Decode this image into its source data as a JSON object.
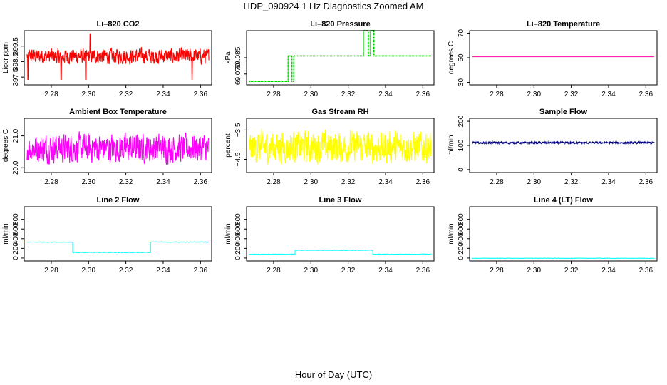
{
  "figure": {
    "title": "HDP_090924  1 Hz Diagnostics Zoomed AM",
    "xlabel": "Hour of Day (UTC)"
  },
  "chart_data": [
    {
      "type": "line",
      "title": "Li–820 CO2",
      "ylabel": "Licor ppm",
      "color": "#ff0000",
      "xlim": [
        2.2655,
        2.366
      ],
      "ylim": [
        397.0,
        400.5
      ],
      "xticks": [
        "2.28",
        "2.30",
        "2.32",
        "2.34",
        "2.36"
      ],
      "yticks": [
        "397.5",
        "398.5",
        "399.5"
      ],
      "series": [
        {
          "name": "CO2",
          "kind": "noise",
          "base": 398.85,
          "amp": 0.5,
          "spikes_down": [
            2.2675,
            2.2853,
            2.2985,
            2.3555
          ],
          "spike_min": 397.35,
          "spikes_up": [
            2.3008
          ],
          "spike_max": 400.3
        }
      ]
    },
    {
      "type": "line",
      "title": "Li–820 Pressure",
      "ylabel": "kPa",
      "color": "#00cc00",
      "xlim": [
        2.2655,
        2.366
      ],
      "ylim": [
        69.06,
        69.11
      ],
      "xticks": [
        "2.28",
        "2.30",
        "2.32",
        "2.34",
        "2.36"
      ],
      "yticks": [
        "69.070",
        "69.085"
      ],
      "series": [
        {
          "name": "Pressure",
          "kind": "steps",
          "points": [
            [
              2.2655,
              69.0632
            ],
            [
              2.2878,
              69.0632
            ],
            [
              2.2878,
              69.0867
            ],
            [
              2.2898,
              69.0867
            ],
            [
              2.2898,
              69.0632
            ],
            [
              2.2908,
              69.0632
            ],
            [
              2.2908,
              69.0867
            ],
            [
              2.3282,
              69.0867
            ],
            [
              2.3282,
              69.1102
            ],
            [
              2.3308,
              69.1102
            ],
            [
              2.3308,
              69.0867
            ],
            [
              2.3318,
              69.0867
            ],
            [
              2.3318,
              69.1102
            ],
            [
              2.3338,
              69.1102
            ],
            [
              2.3338,
              69.0867
            ],
            [
              2.366,
              69.0867
            ]
          ]
        }
      ]
    },
    {
      "type": "line",
      "title": "Li–820 Temperature",
      "ylabel": "degrees C",
      "color": "#ff00aa",
      "xlim": [
        2.2655,
        2.366
      ],
      "ylim": [
        28,
        72
      ],
      "xticks": [
        "2.28",
        "2.30",
        "2.32",
        "2.34",
        "2.36"
      ],
      "yticks": [
        "30",
        "50",
        "70"
      ],
      "series": [
        {
          "name": "Temperature",
          "kind": "flat",
          "value": 50.8
        }
      ]
    },
    {
      "type": "line",
      "title": "Ambient Box Temperature",
      "ylabel": "degrees C",
      "color": "#ff00ff",
      "xlim": [
        2.2655,
        2.366
      ],
      "ylim": [
        19.85,
        21.55
      ],
      "xticks": [
        "2.28",
        "2.30",
        "2.32",
        "2.34",
        "2.36"
      ],
      "yticks": [
        "20.0",
        "21.0"
      ],
      "series": [
        {
          "name": "Box Temperature",
          "kind": "noise",
          "base": 20.62,
          "amp": 0.45
        }
      ]
    },
    {
      "type": "line",
      "title": "Gas Stream RH",
      "ylabel": "percent",
      "color": "#ffff00",
      "xlim": [
        2.2655,
        2.366
      ],
      "ylim": [
        -4.95,
        -3.1
      ],
      "xticks": [
        "2.28",
        "2.30",
        "2.32",
        "2.34",
        "2.36"
      ],
      "yticks": [
        "−4.5",
        "−3.5"
      ],
      "series": [
        {
          "name": "RH",
          "kind": "noise",
          "base": -4.08,
          "amp": 0.55
        }
      ]
    },
    {
      "type": "line",
      "title": "Sample Flow",
      "ylabel": "ml/min",
      "color": "#000080",
      "xlim": [
        2.2655,
        2.366
      ],
      "ylim": [
        -12,
        212
      ],
      "xticks": [
        "2.28",
        "2.30",
        "2.32",
        "2.34",
        "2.36"
      ],
      "yticks": [
        "0",
        "100",
        "200"
      ],
      "series": [
        {
          "name": "Sample Flow",
          "kind": "noise",
          "base": 111,
          "amp": 4
        }
      ]
    },
    {
      "type": "line",
      "title": "Line 2 Flow",
      "ylabel": "ml/min",
      "color": "#00ffff",
      "xlim": [
        2.2655,
        2.366
      ],
      "ylim": [
        -60,
        1060
      ],
      "xticks": [
        "2.28",
        "2.30",
        "2.32",
        "2.34",
        "2.36"
      ],
      "yticks": [
        "0",
        "200",
        "400",
        "600",
        "800"
      ],
      "series": [
        {
          "name": "Line 2",
          "kind": "levels",
          "jitter": 7,
          "points": [
            [
              2.2655,
              330
            ],
            [
              2.2915,
              330
            ],
            [
              2.2915,
              115
            ],
            [
              2.3332,
              115
            ],
            [
              2.3332,
              330
            ],
            [
              2.366,
              330
            ]
          ]
        }
      ]
    },
    {
      "type": "line",
      "title": "Line 3 Flow",
      "ylabel": "ml/min",
      "color": "#00ffff",
      "xlim": [
        2.2655,
        2.366
      ],
      "ylim": [
        -60,
        1060
      ],
      "xticks": [
        "2.28",
        "2.30",
        "2.32",
        "2.34",
        "2.36"
      ],
      "yticks": [
        "0",
        "200",
        "400",
        "600",
        "800"
      ],
      "series": [
        {
          "name": "Line 3",
          "kind": "levels",
          "jitter": 5,
          "points": [
            [
              2.2655,
              80
            ],
            [
              2.2915,
              80
            ],
            [
              2.2915,
              160
            ],
            [
              2.3332,
              160
            ],
            [
              2.3332,
              80
            ],
            [
              2.366,
              80
            ]
          ]
        }
      ]
    },
    {
      "type": "line",
      "title": "Line 4 (LT) Flow",
      "ylabel": "ml/min",
      "color": "#00ffff",
      "xlim": [
        2.2655,
        2.366
      ],
      "ylim": [
        -60,
        1060
      ],
      "xticks": [
        "2.28",
        "2.30",
        "2.32",
        "2.34",
        "2.36"
      ],
      "yticks": [
        "0",
        "200",
        "400",
        "600",
        "800"
      ],
      "series": [
        {
          "name": "Line 4",
          "kind": "levels",
          "jitter": 4,
          "points": [
            [
              2.2655,
              -5
            ],
            [
              2.366,
              -5
            ]
          ]
        }
      ]
    }
  ]
}
